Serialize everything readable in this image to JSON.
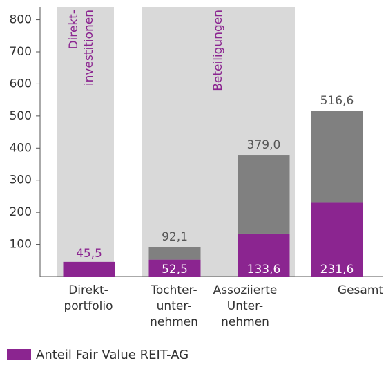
{
  "chart_data": {
    "type": "bar",
    "stacked": true,
    "categories": [
      [
        "Direkt-",
        "portfolio"
      ],
      [
        "Tochter-",
        "unter-",
        "nehmen"
      ],
      [
        "Assoziierte",
        "Unter-",
        "nehmen"
      ],
      [
        "Gesamt"
      ]
    ],
    "series": [
      {
        "name": "Anteil Fair Value REIT-AG",
        "color": "#8b2590",
        "values": [
          45.5,
          52.5,
          133.6,
          231.6
        ],
        "value_labels": [
          "45,5",
          "52,5",
          "133,6",
          "231,6"
        ]
      },
      {
        "color": "#808080",
        "values": [
          null,
          39.6,
          245.4,
          285.0
        ]
      }
    ],
    "totals": [
      null,
      92.1,
      379.0,
      516.6
    ],
    "total_labels": [
      null,
      "92,1",
      "379,0",
      "516,6"
    ],
    "groups": [
      {
        "label": [
          "Direkt-",
          "investitionen"
        ]
      },
      {
        "label": [
          "Beteiligungen"
        ]
      }
    ],
    "ylim": [
      0,
      840
    ],
    "yticks": [
      100,
      200,
      300,
      400,
      500,
      600,
      700,
      800
    ],
    "legend": "bottom-left"
  }
}
